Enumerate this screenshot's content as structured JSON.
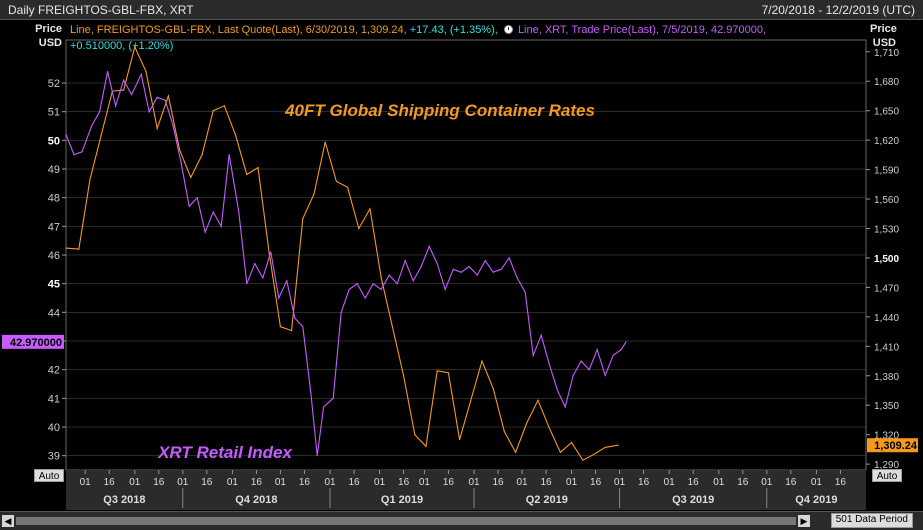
{
  "header": {
    "title": "Daily FREIGHTOS-GBL-FBX, XRT",
    "date_range": "7/20/2018 - 12/2/2019 (UTC)"
  },
  "axis_heads": {
    "left_line1": "Price",
    "left_line2": "USD",
    "right_line1": "Price",
    "right_line2": "USD"
  },
  "legend": {
    "fbx_text": "Line, FREIGHTOS-GBL-FBX, Last Quote(Last), 6/30/2019, 1,309.24,",
    "fbx_change": "+17.43, (+1.35%),",
    "xrt_text": "Line, XRT, Trade Price(Last), 7/5/2019, 42.970000,",
    "xrt_change": "+0.510000, (+1.20%)"
  },
  "controls": {
    "auto_left": "Auto",
    "auto_right": "Auto",
    "data_period": "501 Data Period",
    "scroll_left": "◀",
    "scroll_right": "▶"
  },
  "colors": {
    "fbx": "#f39a1e",
    "xrt": "#c65cff",
    "grid": "#555555",
    "fbx_label_bg": "#f39a1e",
    "xrt_label_bg": "#c65cff"
  },
  "chart_data": {
    "type": "line",
    "annotations": [
      {
        "text": "40FT Global Shipping Container Rates",
        "color": "#f39a1e"
      },
      {
        "text": "XRT Retail Index",
        "color": "#c65cff"
      }
    ],
    "y_left": {
      "ylim": [
        38.5,
        53.5
      ],
      "ticks": [
        "39",
        "40",
        "41",
        "42",
        "43",
        "44",
        "45",
        "46",
        "47",
        "48",
        "49",
        "50",
        "51",
        "52"
      ],
      "bold_ticks": [
        "45",
        "50"
      ],
      "last_value_label": "42.970000"
    },
    "y_right": {
      "ylim": [
        1284,
        1722
      ],
      "ticks": [
        "1,290",
        "1,320",
        "1,350",
        "1,380",
        "1,410",
        "1,440",
        "1,470",
        "1,500",
        "1,530",
        "1,560",
        "1,590",
        "1,620",
        "1,650",
        "1,680",
        "1,710"
      ],
      "bold_ticks": [
        "1,500"
      ],
      "last_value_label": "1,309.24"
    },
    "x_axis": {
      "day_ticks": [
        "01",
        "16",
        "01",
        "16",
        "01",
        "16",
        "01",
        "16",
        "01",
        "16",
        "01",
        "16",
        "01",
        "16",
        "01",
        "16",
        "01",
        "16",
        "01",
        "16",
        "01",
        "16",
        "01",
        "16",
        "01",
        "16",
        "01",
        "16",
        "01",
        "16",
        "01",
        "16",
        "01",
        "16"
      ],
      "quarters": [
        "Q3 2018",
        "Q4 2018",
        "Q1 2019",
        "Q2 2019",
        "Q3 2019",
        "Q4 2019"
      ]
    },
    "series": [
      {
        "name": "FREIGHTOS-GBL-FBX",
        "axis": "right",
        "x": [
          "2018-07-20",
          "2018-07-28",
          "2018-08-04",
          "2018-08-11",
          "2018-08-18",
          "2018-08-25",
          "2018-09-01",
          "2018-09-08",
          "2018-09-15",
          "2018-09-22",
          "2018-09-29",
          "2018-10-06",
          "2018-10-13",
          "2018-10-20",
          "2018-10-27",
          "2018-11-03",
          "2018-11-10",
          "2018-11-17",
          "2018-11-24",
          "2018-12-01",
          "2018-12-08",
          "2018-12-15",
          "2018-12-22",
          "2018-12-29",
          "2019-01-05",
          "2019-01-12",
          "2019-01-19",
          "2019-01-26",
          "2019-02-02",
          "2019-02-09",
          "2019-02-16",
          "2019-02-23",
          "2019-03-02",
          "2019-03-09",
          "2019-03-16",
          "2019-03-23",
          "2019-03-30",
          "2019-04-06",
          "2019-04-13",
          "2019-04-20",
          "2019-04-27",
          "2019-05-04",
          "2019-05-11",
          "2019-05-18",
          "2019-05-25",
          "2019-06-01",
          "2019-06-08",
          "2019-06-15",
          "2019-06-22",
          "2019-06-30"
        ],
        "values": [
          1510,
          1509,
          1580,
          1625,
          1670,
          1671,
          1715,
          1690,
          1632,
          1665,
          1610,
          1582,
          1605,
          1650,
          1655,
          1625,
          1585,
          1592,
          1505,
          1430,
          1426,
          1540,
          1565,
          1618,
          1578,
          1572,
          1530,
          1550,
          1480,
          1430,
          1380,
          1320,
          1308,
          1385,
          1383,
          1315,
          1355,
          1395,
          1367,
          1323,
          1302,
          1332,
          1355,
          1327,
          1302,
          1312,
          1294,
          1300,
          1307,
          1309.24
        ]
      },
      {
        "name": "XRT",
        "axis": "left",
        "x": [
          "2018-07-20",
          "2018-07-25",
          "2018-07-30",
          "2018-08-05",
          "2018-08-10",
          "2018-08-15",
          "2018-08-20",
          "2018-08-25",
          "2018-08-30",
          "2018-09-05",
          "2018-09-10",
          "2018-09-15",
          "2018-09-20",
          "2018-09-25",
          "2018-09-30",
          "2018-10-05",
          "2018-10-10",
          "2018-10-15",
          "2018-10-20",
          "2018-10-25",
          "2018-10-30",
          "2018-11-05",
          "2018-11-10",
          "2018-11-15",
          "2018-11-20",
          "2018-11-25",
          "2018-11-30",
          "2018-12-05",
          "2018-12-10",
          "2018-12-15",
          "2018-12-20",
          "2018-12-24",
          "2018-12-28",
          "2019-01-03",
          "2019-01-08",
          "2019-01-13",
          "2019-01-18",
          "2019-01-23",
          "2019-01-28",
          "2019-02-02",
          "2019-02-07",
          "2019-02-12",
          "2019-02-17",
          "2019-02-22",
          "2019-02-27",
          "2019-03-04",
          "2019-03-09",
          "2019-03-14",
          "2019-03-19",
          "2019-03-24",
          "2019-03-29",
          "2019-04-03",
          "2019-04-08",
          "2019-04-13",
          "2019-04-18",
          "2019-04-23",
          "2019-04-28",
          "2019-05-03",
          "2019-05-08",
          "2019-05-13",
          "2019-05-18",
          "2019-05-23",
          "2019-05-28",
          "2019-06-02",
          "2019-06-07",
          "2019-06-12",
          "2019-06-17",
          "2019-06-22",
          "2019-06-27",
          "2019-07-02",
          "2019-07-05"
        ],
        "values": [
          50.2,
          49.5,
          49.6,
          50.5,
          51.0,
          52.4,
          51.2,
          52.1,
          51.6,
          52.3,
          51.0,
          51.5,
          51.4,
          50.5,
          49.2,
          47.7,
          48.0,
          46.8,
          47.5,
          47.0,
          49.5,
          47.5,
          45.0,
          45.7,
          45.2,
          46.1,
          44.5,
          45.1,
          43.8,
          43.5,
          41.2,
          39.0,
          40.7,
          41.0,
          44.0,
          44.8,
          45.0,
          44.5,
          45.0,
          44.8,
          45.3,
          45.0,
          45.8,
          45.1,
          45.6,
          46.3,
          45.7,
          44.8,
          45.5,
          45.4,
          45.6,
          45.3,
          45.8,
          45.4,
          45.5,
          45.9,
          45.2,
          44.7,
          42.5,
          43.2,
          42.2,
          41.3,
          40.7,
          41.8,
          42.3,
          42.0,
          42.7,
          41.8,
          42.5,
          42.7,
          42.97
        ]
      }
    ]
  }
}
